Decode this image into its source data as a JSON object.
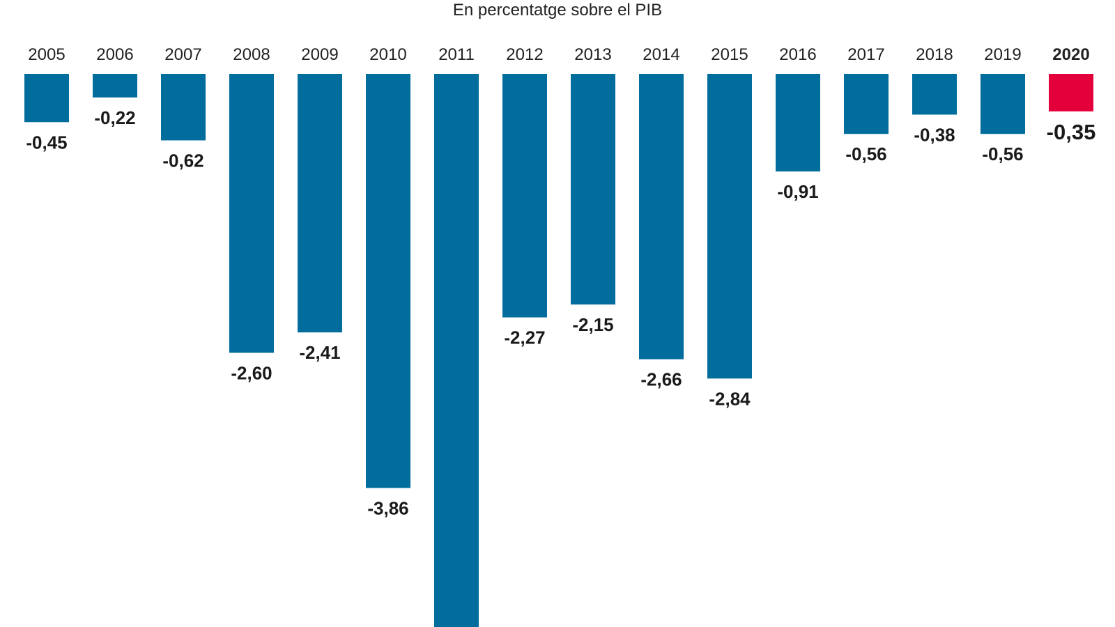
{
  "chart_data": {
    "type": "bar",
    "title": "",
    "subtitle": "En percentatge sobre el PIB",
    "xlabel": "",
    "ylabel": "",
    "categories": [
      "2005",
      "2006",
      "2007",
      "2008",
      "2009",
      "2010",
      "2011",
      "2012",
      "2013",
      "2014",
      "2015",
      "2016",
      "2017",
      "2018",
      "2019",
      "2020"
    ],
    "values": [
      -0.45,
      -0.22,
      -0.62,
      -2.6,
      -2.41,
      -3.86,
      -5.2,
      -2.27,
      -2.15,
      -2.66,
      -2.84,
      -0.91,
      -0.56,
      -0.38,
      -0.56,
      -0.35
    ],
    "value_labels": [
      "-0,45",
      "-0,22",
      "-0,62",
      "-2,60",
      "-2,41",
      "-3,86",
      "",
      "-2,27",
      "-2,15",
      "-2,66",
      "-2,84",
      "-0,91",
      "-0,56",
      "-0,38",
      "-0,56",
      "-0,35"
    ],
    "highlight_category": "2020",
    "colors": {
      "bar": "#016d9c",
      "highlight": "#e4003b"
    },
    "ylim": [
      -5.2,
      0
    ],
    "grid": false,
    "legend": "none"
  }
}
